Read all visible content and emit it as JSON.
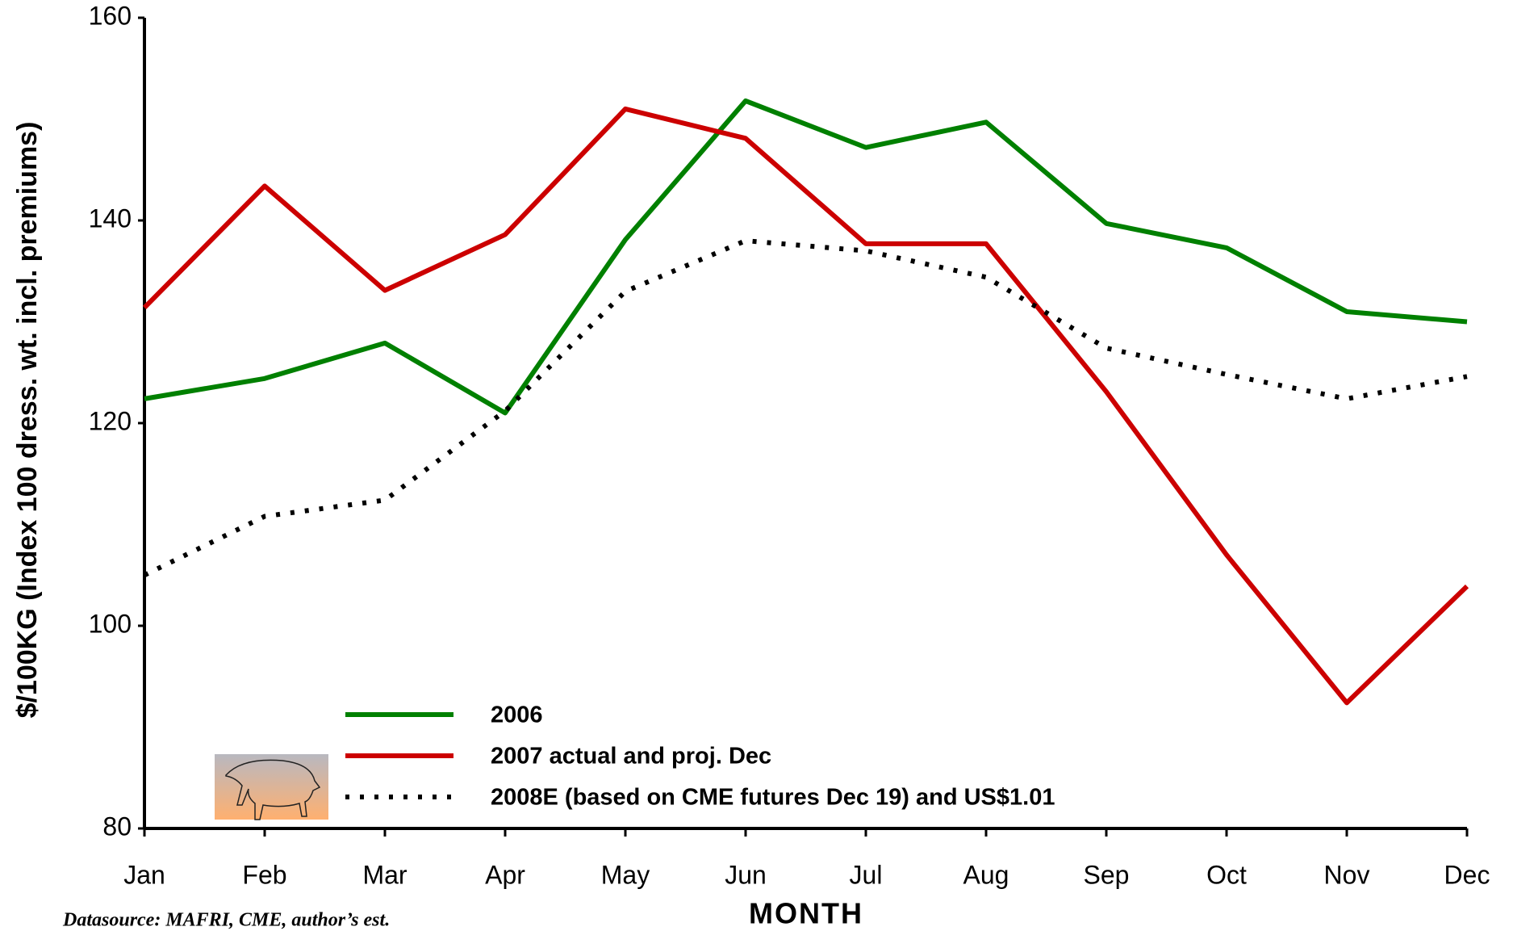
{
  "chart_data": {
    "type": "line",
    "y_label": "$/100KG (Index 100 dress. wt. incl. premiums)",
    "x_label": "MONTH",
    "source": "Datasource: MAFRI, CME, author’s est.",
    "categories": [
      "Jan",
      "Feb",
      "Mar",
      "Apr",
      "May",
      "Jun",
      "Jul",
      "Aug",
      "Sep",
      "Oct",
      "Nov",
      "Dec"
    ],
    "series": [
      {
        "name": "2006",
        "color": "#008000",
        "style": "solid",
        "values": [
          122.4,
          124.4,
          127.9,
          121.0,
          138.1,
          151.8,
          147.2,
          149.7,
          139.7,
          137.3,
          131.0,
          130.0
        ]
      },
      {
        "name": "2007 actual and proj. Dec",
        "color": "#cc0000",
        "style": "solid",
        "values": [
          131.4,
          143.4,
          133.1,
          138.6,
          151.0,
          148.1,
          137.7,
          137.7,
          123.1,
          107.0,
          92.4,
          103.9
        ]
      },
      {
        "name": "2008E (based on CME futures Dec 19) and US$1.01",
        "color": "#000000",
        "style": "dotted",
        "values": [
          105.0,
          110.8,
          112.4,
          121.2,
          133.0,
          138.0,
          137.0,
          134.4,
          127.4,
          124.8,
          122.4,
          124.6
        ]
      }
    ],
    "ylim": [
      80,
      160
    ],
    "yticks": [
      80,
      100,
      120,
      140,
      160
    ],
    "legend": "lower-left"
  }
}
